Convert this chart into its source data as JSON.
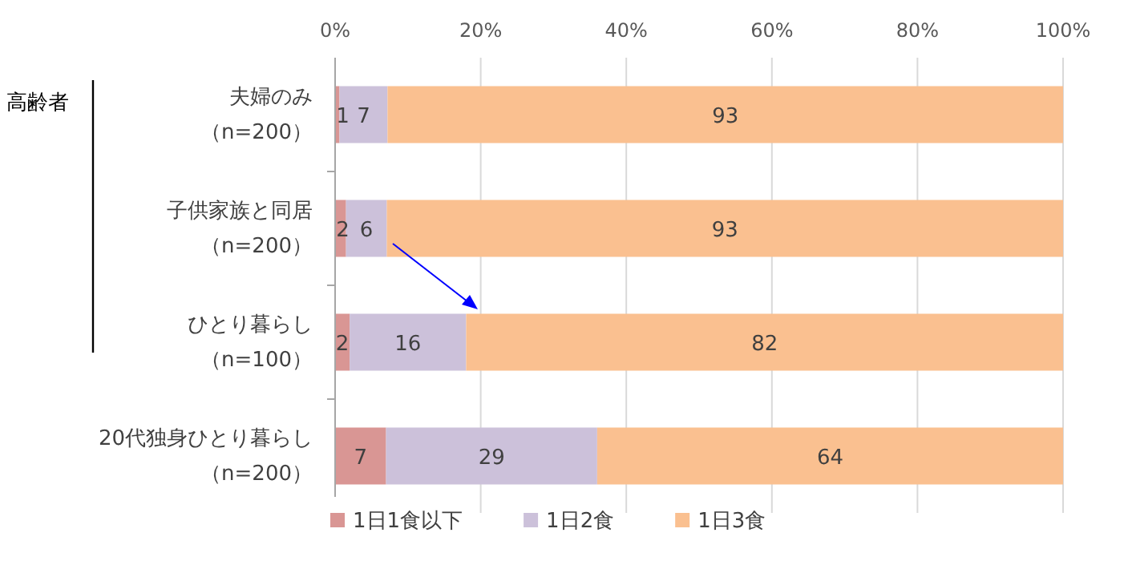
{
  "chart_data": {
    "type": "bar",
    "orientation": "horizontal",
    "stacked": true,
    "categories": [
      "夫婦のみ（n=200）",
      "子供家族と同居（n=200）",
      "ひとり暮らし（n=100）",
      "20代独身ひとり暮らし（n=200）"
    ],
    "series": [
      {
        "name": "1日1食以下",
        "color": "#d99694",
        "values": [
          0.6,
          1.5,
          2,
          7
        ],
        "value_labels": [
          "1",
          "2",
          "2",
          "7"
        ]
      },
      {
        "name": "1日2食",
        "color": "#ccc1da",
        "values": [
          6.6,
          5.6,
          16,
          29
        ],
        "value_labels": [
          "7",
          "6",
          "16",
          "29"
        ]
      },
      {
        "name": "1日3食",
        "color": "#fac090",
        "values": [
          92.8,
          92.9,
          82,
          64
        ],
        "value_labels": [
          "93",
          "93",
          "82",
          "64"
        ]
      }
    ],
    "xlim": [
      0,
      100
    ],
    "xticks": [
      {
        "value": 0,
        "label": "0%"
      },
      {
        "value": 20,
        "label": "20%"
      },
      {
        "value": 40,
        "label": "40%"
      },
      {
        "value": 60,
        "label": "60%"
      },
      {
        "value": 80,
        "label": "80%"
      },
      {
        "value": 100,
        "label": "100%"
      }
    ],
    "grid": "x",
    "legend": "bottom",
    "annotations": [
      "高齢者"
    ]
  }
}
